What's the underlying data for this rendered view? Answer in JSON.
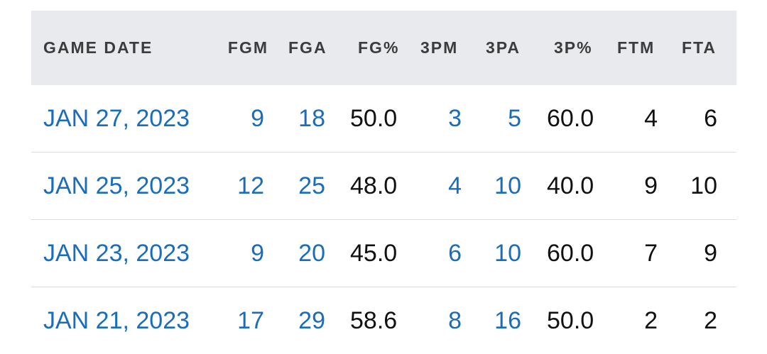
{
  "columns": {
    "date": "GAME DATE",
    "fgm": "FGM",
    "fga": "FGA",
    "fgp": "FG%",
    "tpm": "3PM",
    "tpa": "3PA",
    "tpp": "3P%",
    "ftm": "FTM",
    "fta": "FTA"
  },
  "rows": [
    {
      "date": "JAN 27, 2023",
      "fgm": "9",
      "fga": "18",
      "fgp": "50.0",
      "tpm": "3",
      "tpa": "5",
      "tpp": "60.0",
      "ftm": "4",
      "fta": "6"
    },
    {
      "date": "JAN 25, 2023",
      "fgm": "12",
      "fga": "25",
      "fgp": "48.0",
      "tpm": "4",
      "tpa": "10",
      "tpp": "40.0",
      "ftm": "9",
      "fta": "10"
    },
    {
      "date": "JAN 23, 2023",
      "fgm": "9",
      "fga": "20",
      "fgp": "45.0",
      "tpm": "6",
      "tpa": "10",
      "tpp": "60.0",
      "ftm": "7",
      "fta": "9"
    },
    {
      "date": "JAN 21, 2023",
      "fgm": "17",
      "fga": "29",
      "fgp": "58.6",
      "tpm": "8",
      "tpa": "16",
      "tpp": "50.0",
      "ftm": "2",
      "fta": "2"
    }
  ],
  "colors": {
    "link": "#1a6dbd",
    "header_bg": "#e8eaed",
    "header_text": "#3c3c3c"
  }
}
